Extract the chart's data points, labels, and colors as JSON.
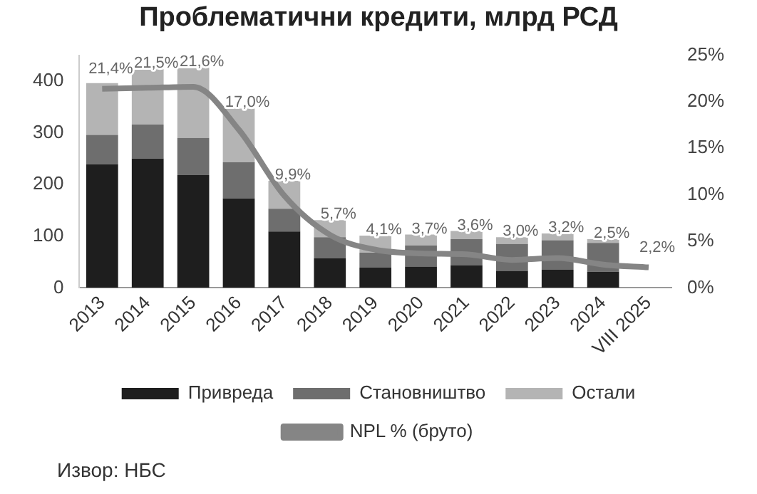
{
  "chart_data": {
    "type": "bar",
    "title": "Проблематични кредити, млрд РСД",
    "stacked": true,
    "categories": [
      "2013",
      "2014",
      "2015",
      "2016",
      "2017",
      "2018",
      "2019",
      "2020",
      "2021",
      "2022",
      "2023",
      "2024",
      "VIII 2025"
    ],
    "series": [
      {
        "name": "Привреда",
        "color": "#1e1e1e",
        "values": [
          239,
          250,
          218,
          173,
          109,
          57,
          39,
          41,
          44,
          33,
          35,
          31,
          null
        ]
      },
      {
        "name": "Становништво",
        "color": "#6e6e6e",
        "values": [
          57,
          66,
          72,
          70,
          44,
          41,
          29,
          41,
          50,
          52,
          57,
          56,
          null
        ]
      },
      {
        "name": "Остали",
        "color": "#b4b4b4",
        "values": [
          100,
          107,
          136,
          104,
          54,
          33,
          33,
          21,
          16,
          13,
          13,
          7,
          null
        ]
      },
      {
        "name": "NPL % (бруто)",
        "type": "line",
        "axis": "y2",
        "color": "#858585",
        "values": [
          21.4,
          21.5,
          21.6,
          17.0,
          9.9,
          5.7,
          4.1,
          3.7,
          3.6,
          3.0,
          3.2,
          2.5,
          2.2
        ],
        "value_labels": [
          "21,4%",
          "21,5%",
          "21,6%",
          "17,0%",
          "9,9%",
          "5,7%",
          "4,1%",
          "3,7%",
          "3,6%",
          "3,0%",
          "3,2%",
          "2,5%",
          "2,2%"
        ]
      }
    ],
    "ylim": [
      0,
      450
    ],
    "yticks": [
      0,
      100,
      200,
      300,
      400
    ],
    "y2lim": [
      0,
      25
    ],
    "y2ticks": [
      {
        "value": 0,
        "label": "0%"
      },
      {
        "value": 5,
        "label": "5%"
      },
      {
        "value": 10,
        "label": "10%"
      },
      {
        "value": 15,
        "label": "15%"
      },
      {
        "value": 20,
        "label": "20%"
      },
      {
        "value": 25,
        "label": "25%"
      }
    ],
    "grid": false,
    "legend": "bottom",
    "annotations": [
      "Извор: НБС"
    ]
  }
}
